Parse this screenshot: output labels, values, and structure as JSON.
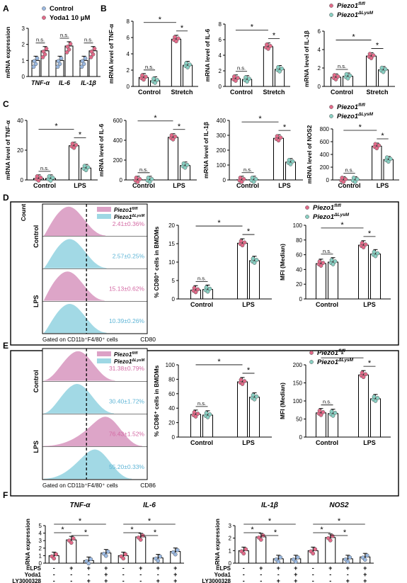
{
  "colors": {
    "control_dot": "#9ab8e0",
    "treat_dot": "#e26a89",
    "piezo_dot": "#e26a89",
    "ko_dot": "#88cfc2",
    "flow_pink": "#dca1c6",
    "flow_cyan": "#9ed8e4",
    "flow_pink_text": "#d46aa4",
    "flow_cyan_text": "#5fb5d6"
  },
  "panels": {
    "A": "A",
    "B": "B",
    "C": "C",
    "D": "D",
    "E": "E",
    "F": "F"
  },
  "legend_A": [
    "Control",
    "Yoda1 10 μM"
  ],
  "legend_piezo": [
    "Piezo1",
    "fl/fl",
    "Piezo1",
    "ΔLysM"
  ],
  "chart_data": [
    {
      "id": "A",
      "type": "bar",
      "ylabel": "mRNA expression",
      "ylim": [
        0,
        3
      ],
      "yticks": [
        "0",
        "1",
        "2",
        "3"
      ],
      "categories": [
        "TNF-α",
        "IL-6",
        "IL-1β"
      ],
      "series": [
        {
          "name": "Control",
          "values": [
            1.0,
            1.0,
            1.0
          ]
        },
        {
          "name": "Yoda1 10 μM",
          "values": [
            1.6,
            1.9,
            1.6
          ]
        }
      ],
      "annotations": [
        "n.s.",
        "n.s.",
        "n.s."
      ]
    },
    {
      "id": "B1",
      "type": "bar",
      "ylabel": "mRNA level of TNF-α",
      "ylim": [
        0,
        8
      ],
      "yticks": [
        "0",
        "2",
        "4",
        "6",
        "8"
      ],
      "categories": [
        "Control",
        "Stretch"
      ],
      "series": [
        {
          "name": "Piezo1 fl/fl",
          "values": [
            1.1,
            5.8
          ]
        },
        {
          "name": "Piezo1 ΔLysM",
          "values": [
            0.7,
            2.6
          ]
        }
      ],
      "annotations": [
        "n.s.",
        "*",
        "*"
      ]
    },
    {
      "id": "B2",
      "type": "bar",
      "ylabel": "mRNA level of IL-6",
      "ylim": [
        0,
        8
      ],
      "yticks": [
        "0",
        "2",
        "4",
        "6",
        "8"
      ],
      "categories": [
        "Control",
        "Stretch"
      ],
      "series": [
        {
          "name": "Piezo1 fl/fl",
          "values": [
            1.0,
            5.1
          ]
        },
        {
          "name": "Piezo1 ΔLysM",
          "values": [
            0.9,
            2.2
          ]
        }
      ],
      "annotations": [
        "n.s.",
        "*",
        "*"
      ]
    },
    {
      "id": "B3",
      "type": "bar",
      "ylabel": "mRNA level of IL-1β",
      "ylim": [
        0,
        6
      ],
      "yticks": [
        "0",
        "2",
        "4",
        "6"
      ],
      "categories": [
        "Control",
        "Stretch"
      ],
      "series": [
        {
          "name": "Piezo1 fl/fl",
          "values": [
            1.0,
            3.3
          ]
        },
        {
          "name": "Piezo1 ΔLysM",
          "values": [
            1.1,
            1.8
          ]
        }
      ],
      "annotations": [
        "n.s.",
        "*",
        "*"
      ]
    },
    {
      "id": "C1",
      "type": "bar",
      "ylabel": "mRNA level of TNF-α",
      "ylim": [
        0,
        40
      ],
      "yticks": [
        "0",
        "20",
        "40"
      ],
      "categories": [
        "Control",
        "LPS"
      ],
      "series": [
        {
          "name": "Piezo1 fl/fl",
          "values": [
            1,
            23
          ]
        },
        {
          "name": "Piezo1 ΔLysM",
          "values": [
            1,
            8
          ]
        }
      ],
      "annotations": [
        "n.s.",
        "*",
        "*"
      ]
    },
    {
      "id": "C2",
      "type": "bar",
      "ylabel": "mRNA level of IL-6",
      "ylim": [
        0,
        600
      ],
      "yticks": [
        "0",
        "200",
        "400",
        "600"
      ],
      "categories": [
        "Control",
        "LPS"
      ],
      "series": [
        {
          "name": "Piezo1 fl/fl",
          "values": [
            1,
            430
          ]
        },
        {
          "name": "Piezo1 ΔLysM",
          "values": [
            1,
            145
          ]
        }
      ],
      "annotations": [
        "n.s.",
        "*",
        "*"
      ]
    },
    {
      "id": "C3",
      "type": "bar",
      "ylabel": "mRNA level of IL-1β",
      "ylim": [
        0,
        400
      ],
      "yticks": [
        "0",
        "100",
        "200",
        "300",
        "400"
      ],
      "categories": [
        "Control",
        "LPS"
      ],
      "series": [
        {
          "name": "Piezo1 fl/fl",
          "values": [
            1,
            280
          ]
        },
        {
          "name": "Piezo1 ΔLysM",
          "values": [
            1,
            120
          ]
        }
      ],
      "annotations": [
        "n.s.",
        "*",
        "*"
      ]
    },
    {
      "id": "C4",
      "type": "bar",
      "ylabel": "mRNA level of NOS2",
      "ylim": [
        0,
        800
      ],
      "yticks": [
        "0",
        "200",
        "400",
        "600",
        "800"
      ],
      "categories": [
        "Control",
        "LPS"
      ],
      "series": [
        {
          "name": "Piezo1 fl/fl",
          "values": [
            1,
            530
          ]
        },
        {
          "name": "Piezo1 ΔLysM",
          "values": [
            1,
            320
          ]
        }
      ],
      "annotations": [
        "n.s.",
        "*",
        "*"
      ]
    },
    {
      "id": "D2",
      "type": "bar",
      "ylabel": "% CD80⁺ cells in BMDMs",
      "ylim": [
        0,
        20
      ],
      "yticks": [
        "0",
        "5",
        "10",
        "15",
        "20"
      ],
      "categories": [
        "Control",
        "LPS"
      ],
      "series": [
        {
          "name": "Piezo1 fl/fl",
          "values": [
            2.41,
            15.13
          ]
        },
        {
          "name": "Piezo1 ΔLysM",
          "values": [
            2.57,
            10.39
          ]
        }
      ],
      "annotations": [
        "n.s.",
        "*",
        "*"
      ]
    },
    {
      "id": "D3",
      "type": "bar",
      "ylabel": "MFI (Median)",
      "ylim": [
        0,
        100
      ],
      "yticks": [
        "0",
        "20",
        "40",
        "60",
        "80",
        "100"
      ],
      "categories": [
        "Control",
        "LPS"
      ],
      "series": [
        {
          "name": "Piezo1 fl/fl",
          "values": [
            48,
            73
          ]
        },
        {
          "name": "Piezo1 ΔLysM",
          "values": [
            50,
            61
          ]
        }
      ],
      "annotations": [
        "n.s.",
        "*",
        "*"
      ]
    },
    {
      "id": "E2",
      "type": "bar",
      "ylabel": "% CD86⁺ cells in BMDMs",
      "ylim": [
        0,
        100
      ],
      "yticks": [
        "0",
        "20",
        "40",
        "60",
        "80",
        "100"
      ],
      "categories": [
        "Control",
        "LPS"
      ],
      "series": [
        {
          "name": "Piezo1 fl/fl",
          "values": [
            31.38,
            76.43
          ]
        },
        {
          "name": "Piezo1 ΔLysM",
          "values": [
            30.4,
            55.2
          ]
        }
      ],
      "annotations": [
        "n.s.",
        "*",
        "*"
      ]
    },
    {
      "id": "E3",
      "type": "bar",
      "ylabel": "MFI (Median)",
      "ylim": [
        0,
        200
      ],
      "yticks": [
        "0",
        "50",
        "100",
        "150",
        "200"
      ],
      "categories": [
        "Control",
        "LPS"
      ],
      "series": [
        {
          "name": "Piezo1 fl/fl",
          "values": [
            67,
            172
          ]
        },
        {
          "name": "Piezo1 ΔLysM",
          "values": [
            65,
            106
          ]
        }
      ],
      "annotations": [
        "n.s.",
        "*",
        "*"
      ]
    },
    {
      "id": "F1",
      "type": "bar",
      "ylabel": "mRNA expression",
      "ylim": [
        0,
        5
      ],
      "yticks": [
        "0",
        "1",
        "2",
        "3",
        "4",
        "5"
      ],
      "groups": [
        "TNF-α",
        "IL-6"
      ],
      "values": [
        1.0,
        3.1,
        0.35,
        1.35,
        1.0,
        3.5,
        0.7,
        1.55
      ],
      "treatment_rows": {
        "LPS": [
          "-",
          "+",
          "+",
          "+",
          "-",
          "+",
          "+",
          "+"
        ],
        "Yoda1": [
          "-",
          "-",
          "-",
          "+",
          "-",
          "-",
          "-",
          "+"
        ],
        "LY3000328": [
          "-",
          "-",
          "+",
          "+",
          "-",
          "-",
          "+",
          "+"
        ]
      }
    },
    {
      "id": "F2",
      "type": "bar",
      "ylabel": "mRNA expression",
      "ylim": [
        0,
        3
      ],
      "yticks": [
        "0",
        "1",
        "2",
        "3"
      ],
      "groups": [
        "IL-1β",
        "NOS2"
      ],
      "values": [
        1.0,
        2.1,
        0.35,
        0.35,
        1.0,
        2.05,
        0.35,
        0.5
      ],
      "treatment_rows": {
        "LPS": [
          "-",
          "+",
          "+",
          "+",
          "-",
          "+",
          "+",
          "+"
        ],
        "Yoda1": [
          "-",
          "-",
          "-",
          "+",
          "-",
          "-",
          "-",
          "+"
        ],
        "LY3000328": [
          "-",
          "-",
          "+",
          "+",
          "-",
          "-",
          "+",
          "+"
        ]
      }
    }
  ],
  "flow": {
    "D": {
      "count_label": "Count",
      "row_labels": [
        "Control",
        "LPS"
      ],
      "stats": [
        "2.41±0.36%",
        "2.57±0.25%",
        "15.13±0.62%",
        "10.39±0.26%"
      ],
      "gate_label": "Gated on CD11b⁺F4/80⁺ cells",
      "x_label": "CD80"
    },
    "E": {
      "row_labels": [
        "Control",
        "LPS"
      ],
      "stats": [
        "31.38±0.79%",
        "30.40±1.72%",
        "76.43±1.52%",
        "55.20±0.33%"
      ],
      "gate_label": "Gated on CD11b⁺F4/80⁺ cells",
      "x_label": "CD86"
    }
  },
  "treatment_labels": [
    "LPS",
    "Yoda1",
    "LY3000328"
  ]
}
